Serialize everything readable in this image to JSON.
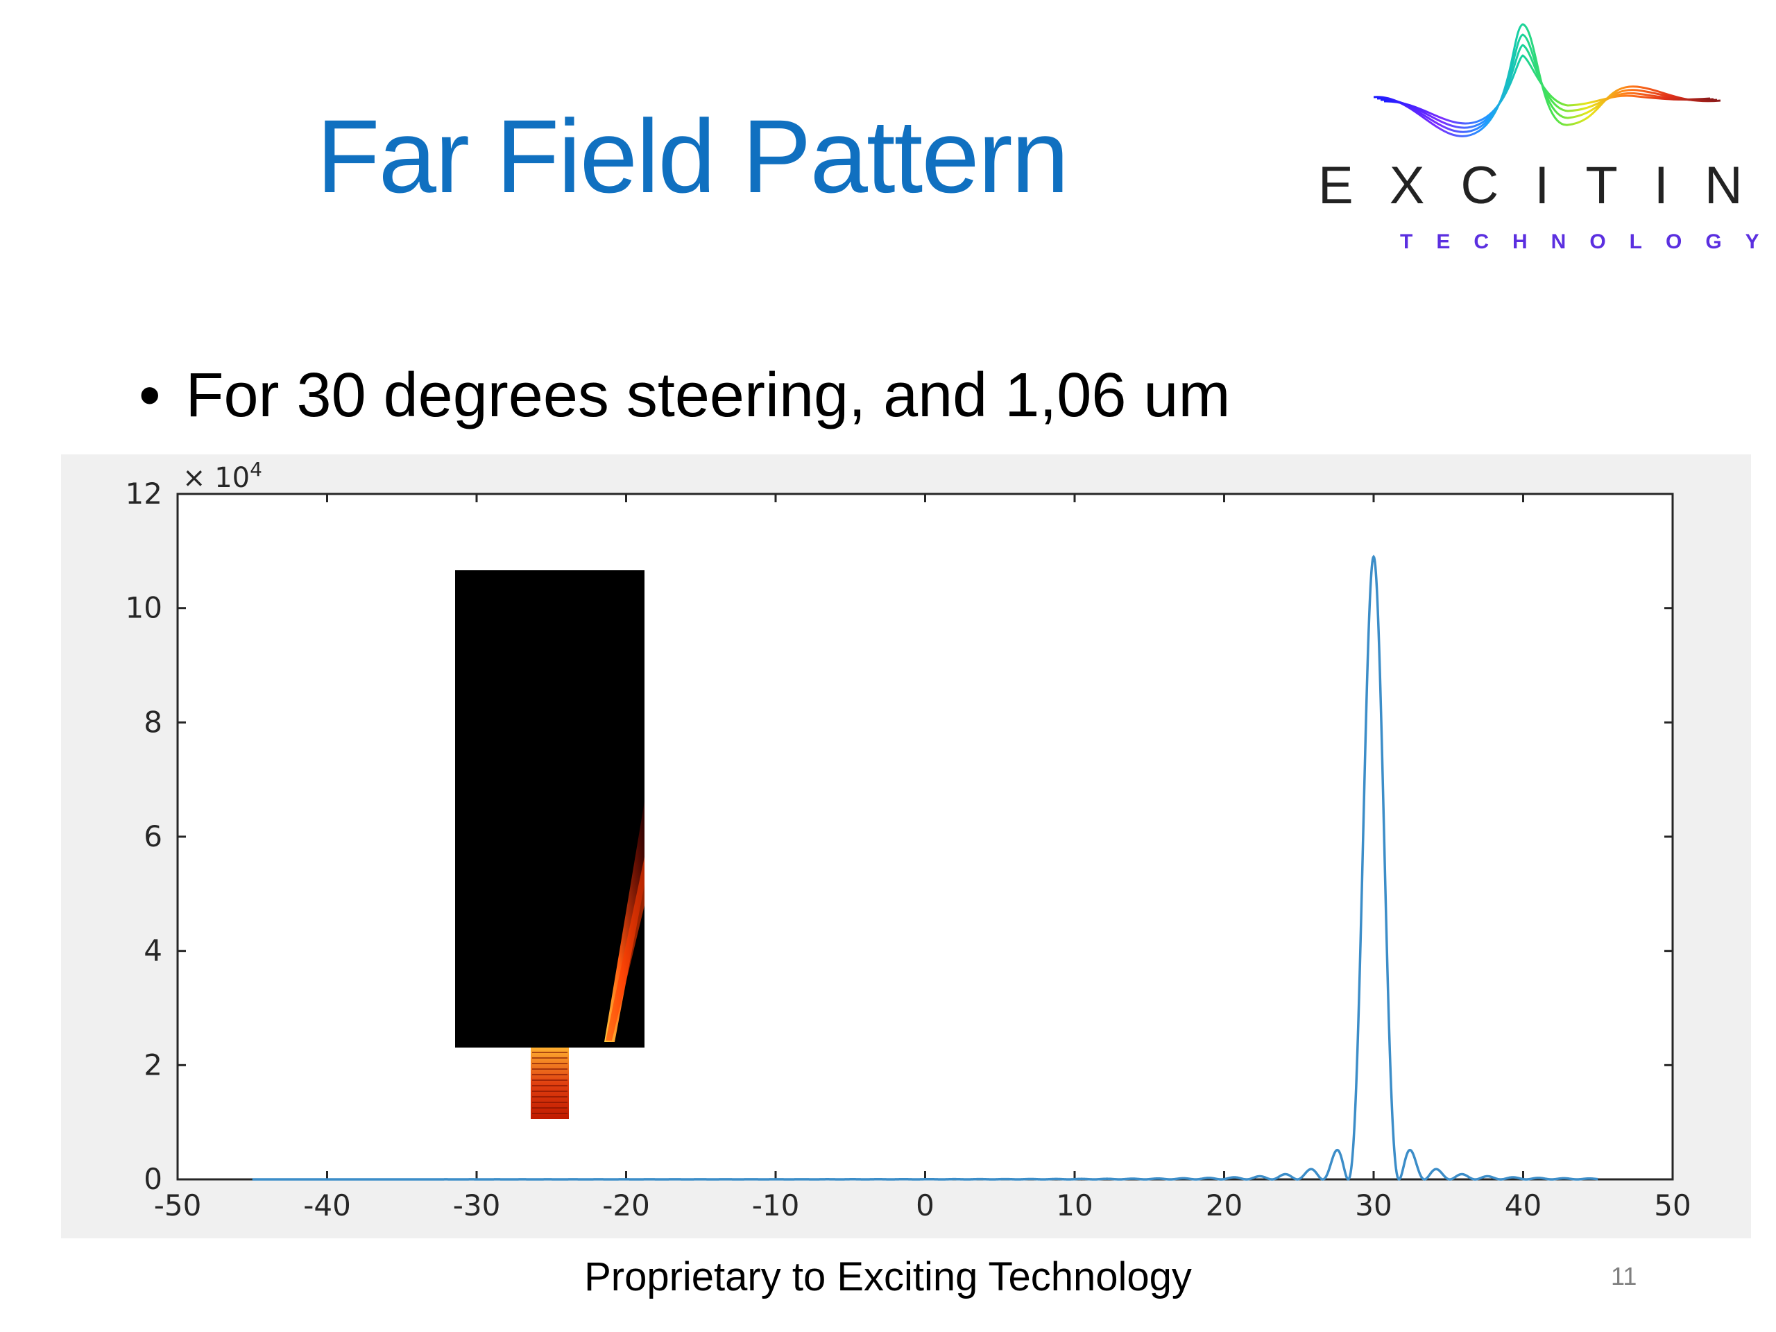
{
  "slide": {
    "title": "Far Field Pattern",
    "bullet": "For 30 degrees steering, and 1,06 um",
    "bullet_marker": "•",
    "footer": "Proprietary to Exciting Technology",
    "page_number": "11"
  },
  "logo": {
    "word": "EXCITING",
    "tagline": "TECHNOLOGY"
  },
  "colors": {
    "title": "#1070C0",
    "line": "#3C8DC8",
    "panel": "#f0f0f0"
  },
  "chart_data": {
    "type": "line",
    "xlim": [
      -50,
      50
    ],
    "ylim": [
      0,
      12
    ],
    "x_ticks": [
      "-50",
      "-40",
      "-30",
      "-20",
      "-10",
      "0",
      "10",
      "20",
      "30",
      "40",
      "50"
    ],
    "y_ticks": [
      "0",
      "2",
      "4",
      "6",
      "8",
      "10",
      "12"
    ],
    "y_multiplier": "× 10",
    "y_multiplier_exponent": "4",
    "x_range": [
      -45,
      45
    ],
    "series": [
      {
        "shape": "sinc-squared main lobe with side lobes",
        "peak": {
          "x": 30,
          "y": 10.9
        },
        "first_nulls": [
          28.3,
          31.7
        ],
        "side_lobes": [
          {
            "x": 27.3,
            "y": 0.52
          },
          {
            "x": 32.7,
            "y": 0.45
          },
          {
            "x": 25.2,
            "y": 0.2
          },
          {
            "x": 34.8,
            "y": 0.18
          },
          {
            "x": 23.2,
            "y": 0.08
          },
          {
            "x": 36.8,
            "y": 0.07
          }
        ]
      }
    ],
    "inset_image": "beam-steering-simulation"
  }
}
